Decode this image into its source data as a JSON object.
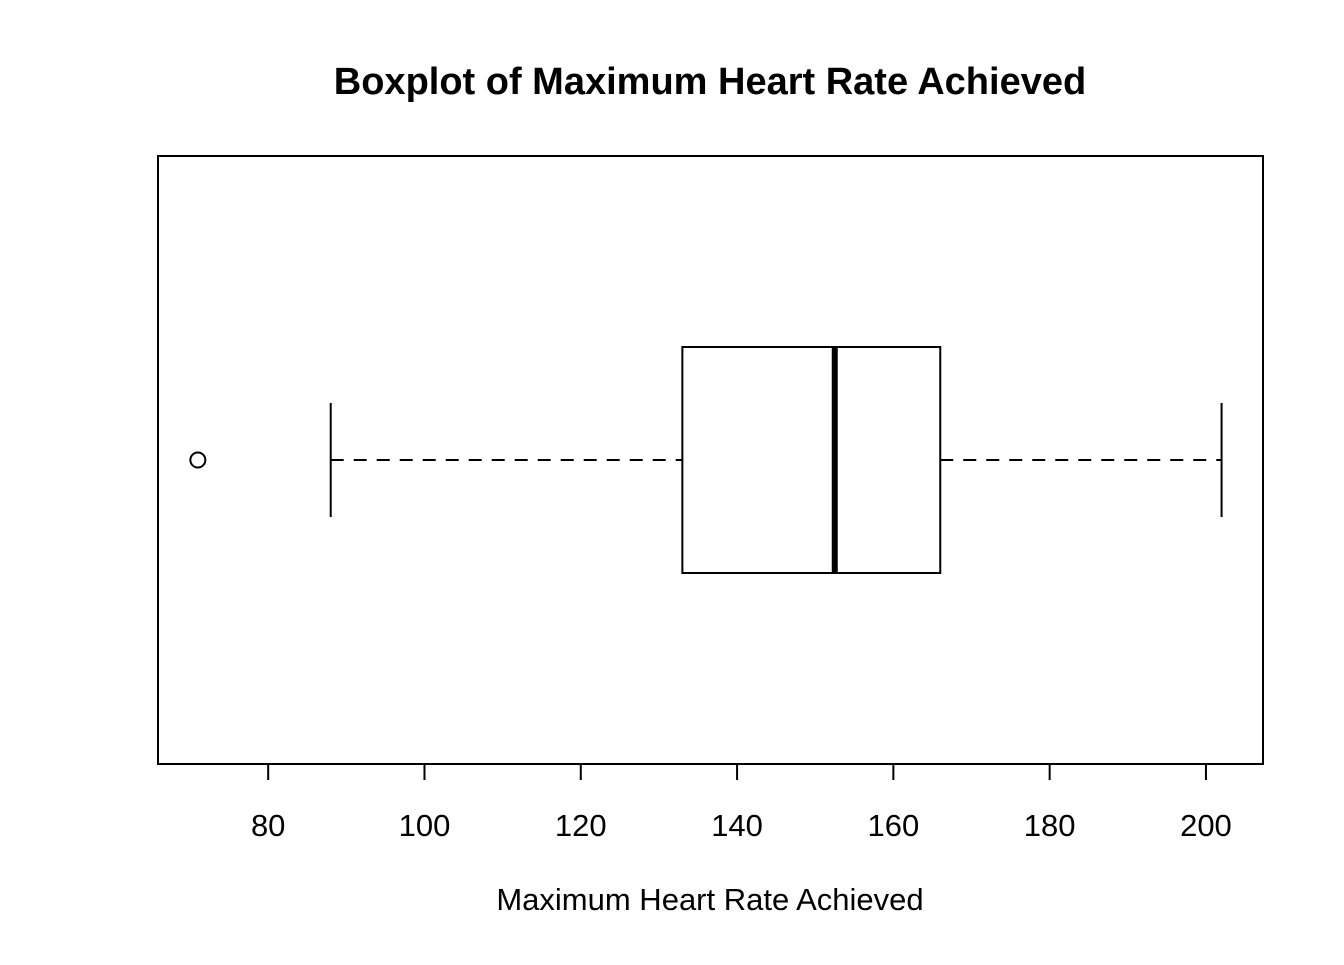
{
  "figure": {
    "title": "Boxplot of Maximum Heart Rate Achieved",
    "x_axis_label": "Maximum Heart Rate Achieved"
  },
  "chart_data": {
    "type": "boxplot",
    "orientation": "horizontal",
    "title": "Boxplot of Maximum Heart Rate Achieved",
    "xlabel": "Maximum Heart Rate Achieved",
    "ylabel": "",
    "x_ticks": [
      80,
      100,
      120,
      140,
      160,
      180,
      200
    ],
    "xlim": [
      65.9,
      207.3
    ],
    "grid": false,
    "legend": false,
    "line_color": "#000000",
    "background_color": "#ffffff",
    "series": [
      {
        "name": "Maximum Heart Rate Achieved",
        "whisker_low": 88,
        "q1": 133,
        "median": 152.5,
        "q3": 166,
        "whisker_high": 202,
        "outliers": [
          71
        ]
      }
    ]
  }
}
